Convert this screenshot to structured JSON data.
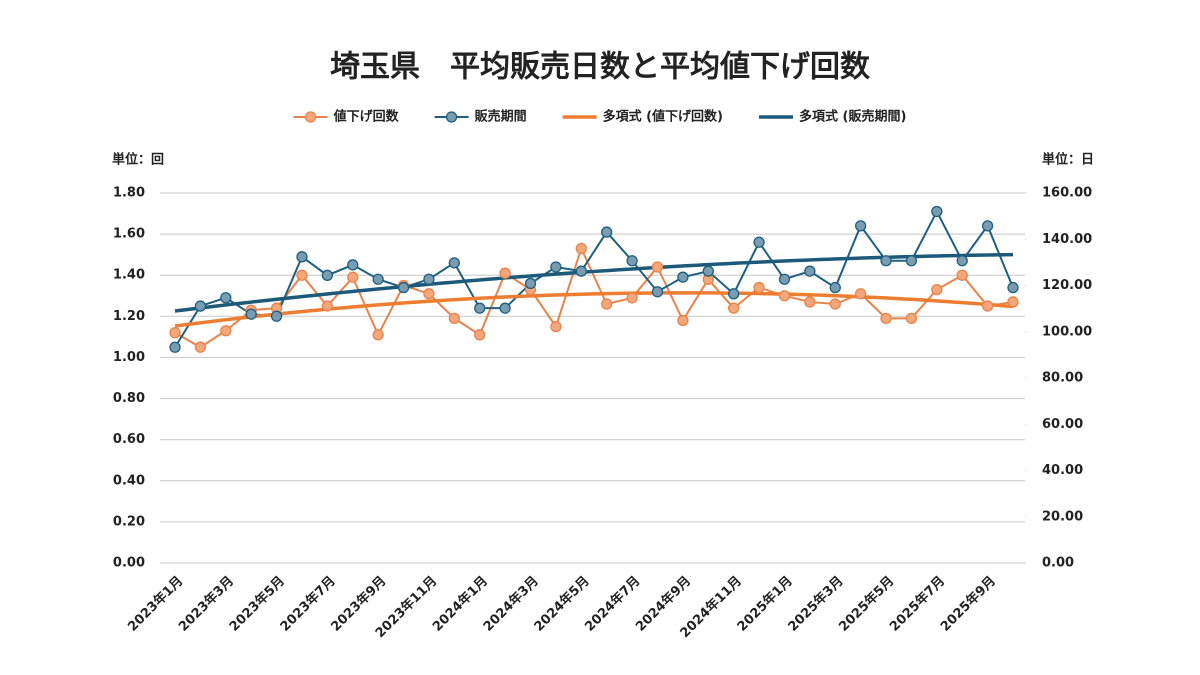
{
  "chart_data": {
    "type": "line",
    "title": "埼玉県　平均販売日数と平均値下げ回数",
    "y_unit": "単位：回",
    "y2_unit": "単位：日",
    "categories": [
      "2023年1月",
      null,
      "2023年3月",
      null,
      "2023年5月",
      null,
      "2023年7月",
      null,
      "2023年9月",
      null,
      "2023年11月",
      null,
      "2024年1月",
      null,
      "2024年3月",
      null,
      "2024年5月",
      null,
      "2024年7月",
      null,
      "2024年9月",
      null,
      "2024年11月",
      null,
      "2025年1月",
      null,
      "2025年3月",
      null,
      "2025年5月",
      null,
      "2025年7月",
      null,
      "2025年9月",
      null
    ],
    "series": [
      {
        "name": "値下げ回数",
        "color": "#e8834a",
        "marker_fill": "#f4a77a",
        "values": [
          1.12,
          1.05,
          1.13,
          1.23,
          1.24,
          1.4,
          1.25,
          1.39,
          1.11,
          1.35,
          1.31,
          1.19,
          1.11,
          1.41,
          1.33,
          1.15,
          1.53,
          1.26,
          1.29,
          1.44,
          1.18,
          1.38,
          1.24,
          1.34,
          1.3,
          1.27,
          1.26,
          1.31,
          1.19,
          1.19,
          1.33,
          1.4,
          1.25,
          1.27
        ]
      },
      {
        "name": "販売期間",
        "color": "#1f5f80",
        "marker_fill": "#7a9cb0",
        "axis": "y2",
        "values": [
          93.3,
          111.1,
          114.7,
          107.6,
          106.7,
          132.4,
          124.4,
          128.9,
          122.7,
          119.1,
          122.7,
          129.8,
          110.2,
          110.2,
          120.9,
          128.0,
          126.2,
          143.1,
          130.7,
          117.3,
          123.6,
          126.2,
          116.4,
          138.7,
          122.7,
          126.2,
          119.1,
          145.8,
          130.7,
          130.7,
          152.0,
          130.7,
          145.8,
          119.1
        ]
      }
    ],
    "trendlines": [
      {
        "name": "多項式 (値下げ回数)",
        "series": 0,
        "order": 2,
        "color": "#ed7d31"
      },
      {
        "name": "多項式 (販売期間)",
        "series": 1,
        "order": 2,
        "color": "#1d5a7a"
      }
    ],
    "ylim": [
      0,
      1.8
    ],
    "yticks": [
      {
        "value": 0,
        "label": "0.00"
      },
      {
        "value": 0.2,
        "label": "0.20"
      },
      {
        "value": 0.4,
        "label": "0.40"
      },
      {
        "value": 0.6,
        "label": "0.60"
      },
      {
        "value": 0.8,
        "label": "0.80"
      },
      {
        "value": 1,
        "label": "1.00"
      },
      {
        "value": 1.2,
        "label": "1.20"
      },
      {
        "value": 1.4,
        "label": "1.40"
      },
      {
        "value": 1.6,
        "label": "1.60"
      },
      {
        "value": 1.8,
        "label": "1.80"
      }
    ],
    "y2lim": [
      0,
      160
    ],
    "y2ticks": [
      {
        "value": 0,
        "label": "0.00"
      },
      {
        "value": 20,
        "label": "20.00"
      },
      {
        "value": 40,
        "label": "40.00"
      },
      {
        "value": 60,
        "label": "60.00"
      },
      {
        "value": 80,
        "label": "80.00"
      },
      {
        "value": 100,
        "label": "100.00"
      },
      {
        "value": 120,
        "label": "120.00"
      },
      {
        "value": 140,
        "label": "140.00"
      },
      {
        "value": 160,
        "label": "160.00"
      }
    ],
    "grid": true
  }
}
